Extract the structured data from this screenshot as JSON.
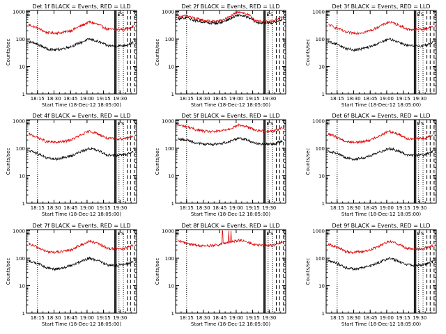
{
  "colors": {
    "events": "#000000",
    "lld": "#dd0000",
    "axis": "#000000"
  },
  "chart_data": [
    {
      "type": "line",
      "title": "Det 1f BLACK = Events, RED = LLD",
      "xlabel": "Start Time (18-Dec-12 18:05:00)",
      "ylabel": "Counts/sec",
      "x_ticks": [
        "18:15",
        "18:30",
        "18:45",
        "19:00",
        "19:15",
        "19:30"
      ],
      "y_ticks": [
        "1",
        "10",
        "100",
        "1000"
      ],
      "y_scale": "log",
      "ylim": [
        1,
        1100
      ],
      "xlim_minutes": [
        0,
        100
      ],
      "event_markers": [
        "E",
        "S"
      ],
      "series": [
        {
          "role": "lld",
          "level": [
            330,
            250,
            175,
            165,
            175,
            210,
            300,
            420,
            330,
            230,
            220,
            230,
            290
          ]
        },
        {
          "role": "events",
          "level": [
            80,
            65,
            45,
            40,
            45,
            55,
            75,
            100,
            80,
            58,
            55,
            58,
            75
          ]
        }
      ]
    },
    {
      "type": "line",
      "title": "Det 2f BLACK = Events, RED = LLD",
      "xlabel": "Start Time (18-Dec-12 18:05:00)",
      "ylabel": "Counts/sec",
      "x_ticks": [
        "18:15",
        "18:30",
        "18:45",
        "19:00",
        "19:15",
        "19:30"
      ],
      "y_ticks": [
        "1",
        "10",
        "100",
        "1000"
      ],
      "y_scale": "log",
      "ylim": [
        1,
        1100
      ],
      "xlim_minutes": [
        0,
        100
      ],
      "event_markers": [
        "E",
        "S"
      ],
      "series": [
        {
          "role": "lld",
          "level": [
            620,
            700,
            560,
            480,
            430,
            470,
            650,
            1000,
            780,
            450,
            420,
            460,
            620
          ]
        },
        {
          "role": "events",
          "level": [
            520,
            600,
            470,
            410,
            370,
            400,
            550,
            750,
            620,
            400,
            380,
            400,
            520
          ]
        }
      ]
    },
    {
      "type": "line",
      "title": "Det 3f BLACK = Events, RED = LLD",
      "xlabel": "Start Time (18-Dec-12 18:05:00)",
      "ylabel": "Counts/sec",
      "x_ticks": [
        "18:15",
        "18:30",
        "18:45",
        "19:00",
        "19:15",
        "19:30"
      ],
      "y_ticks": [
        "1",
        "10",
        "100",
        "1000"
      ],
      "y_scale": "log",
      "ylim": [
        1,
        1100
      ],
      "xlim_minutes": [
        0,
        100
      ],
      "event_markers": [
        "E",
        "S"
      ],
      "series": [
        {
          "role": "lld",
          "level": [
            330,
            250,
            175,
            165,
            175,
            210,
            300,
            420,
            330,
            230,
            220,
            230,
            290
          ]
        },
        {
          "role": "events",
          "level": [
            80,
            65,
            45,
            40,
            45,
            55,
            75,
            100,
            80,
            58,
            55,
            58,
            75
          ]
        }
      ]
    },
    {
      "type": "line",
      "title": "Det 4f BLACK = Events, RED = LLD",
      "xlabel": "Start Time (18-Dec-12 18:05:00)",
      "ylabel": "Counts/sec",
      "x_ticks": [
        "18:15",
        "18:30",
        "18:45",
        "19:00",
        "19:15",
        "19:30"
      ],
      "y_ticks": [
        "1",
        "10",
        "100",
        "1000"
      ],
      "y_scale": "log",
      "ylim": [
        1,
        1100
      ],
      "xlim_minutes": [
        0,
        100
      ],
      "event_markers": [
        "E",
        "S"
      ],
      "series": [
        {
          "role": "lld",
          "level": [
            330,
            250,
            175,
            165,
            175,
            210,
            300,
            420,
            330,
            230,
            220,
            230,
            290
          ]
        },
        {
          "role": "events",
          "level": [
            80,
            65,
            45,
            40,
            45,
            55,
            75,
            100,
            80,
            58,
            55,
            58,
            75
          ]
        }
      ]
    },
    {
      "type": "line",
      "title": "Det 5f BLACK = Events, RED = LLD",
      "xlabel": "Start Time (18-Dec-12 18:05:00)",
      "ylabel": "Counts/sec",
      "x_ticks": [
        "18:15",
        "18:30",
        "18:45",
        "19:00",
        "19:15",
        "19:30"
      ],
      "y_ticks": [
        "1",
        "10",
        "100",
        "1000"
      ],
      "y_scale": "log",
      "ylim": [
        1,
        1100
      ],
      "xlim_minutes": [
        0,
        100
      ],
      "event_markers": [
        "E",
        "S"
      ],
      "series": [
        {
          "role": "lld",
          "level": [
            700,
            620,
            480,
            420,
            400,
            430,
            520,
            700,
            600,
            450,
            420,
            430,
            560
          ]
        },
        {
          "role": "events",
          "level": [
            220,
            200,
            160,
            140,
            140,
            150,
            180,
            240,
            200,
            150,
            140,
            145,
            180
          ]
        }
      ]
    },
    {
      "type": "line",
      "title": "Det 6f BLACK = Events, RED = LLD",
      "xlabel": "Start Time (18-Dec-12 18:05:00)",
      "ylabel": "Counts/sec",
      "x_ticks": [
        "18:15",
        "18:30",
        "18:45",
        "19:00",
        "19:15",
        "19:30"
      ],
      "y_ticks": [
        "1",
        "10",
        "100",
        "1000"
      ],
      "y_scale": "log",
      "ylim": [
        1,
        1100
      ],
      "xlim_minutes": [
        0,
        100
      ],
      "event_markers": [
        "E",
        "S"
      ],
      "series": [
        {
          "role": "lld",
          "level": [
            330,
            250,
            175,
            165,
            175,
            210,
            300,
            420,
            330,
            230,
            220,
            230,
            290
          ]
        },
        {
          "role": "events",
          "level": [
            80,
            65,
            45,
            40,
            45,
            55,
            75,
            100,
            80,
            58,
            55,
            58,
            75
          ]
        }
      ]
    },
    {
      "type": "line",
      "title": "Det 7f BLACK = Events, RED = LLD",
      "xlabel": "Start Time (18-Dec-12 18:05:00)",
      "ylabel": "Counts/sec",
      "x_ticks": [
        "18:15",
        "18:30",
        "18:45",
        "19:00",
        "19:15",
        "19:30"
      ],
      "y_ticks": [
        "1",
        "10",
        "100",
        "1000"
      ],
      "y_scale": "log",
      "ylim": [
        1,
        1100
      ],
      "xlim_minutes": [
        0,
        100
      ],
      "event_markers": [
        "E",
        "S"
      ],
      "series": [
        {
          "role": "lld",
          "level": [
            330,
            250,
            175,
            165,
            175,
            210,
            300,
            420,
            330,
            230,
            220,
            230,
            290
          ]
        },
        {
          "role": "events",
          "level": [
            80,
            65,
            45,
            40,
            45,
            55,
            75,
            100,
            80,
            58,
            55,
            58,
            75
          ]
        }
      ]
    },
    {
      "type": "line",
      "title": "Det 8f BLACK = Events, RED = LLD",
      "xlabel": "Start Time (18-Dec-12 18:05:00)",
      "ylabel": "Counts/sec",
      "x_ticks": [
        "18:15",
        "18:30",
        "18:45",
        "19:00",
        "19:15",
        "19:30"
      ],
      "y_ticks": [
        "1",
        "10",
        "100",
        "1000"
      ],
      "y_scale": "log",
      "ylim": [
        1,
        1100
      ],
      "xlim_minutes": [
        0,
        100
      ],
      "event_markers": [
        "E",
        "S"
      ],
      "spikes_minutes": [
        [
          42,
          42.8
        ],
        [
          48,
          48.6
        ],
        [
          50,
          50.6
        ]
      ],
      "spike_level": 1000,
      "series": [
        {
          "role": "lld",
          "level": [
            420,
            360,
            300,
            280,
            290,
            320,
            380,
            460,
            380,
            300,
            290,
            300,
            380
          ]
        }
      ]
    },
    {
      "type": "line",
      "title": "Det 9f BLACK = Events, RED = LLD",
      "xlabel": "Start Time (18-Dec-12 18:05:00)",
      "ylabel": "Counts/sec",
      "x_ticks": [
        "18:15",
        "18:30",
        "18:45",
        "19:00",
        "19:15",
        "19:30"
      ],
      "y_ticks": [
        "1",
        "10",
        "100",
        "1000"
      ],
      "y_scale": "log",
      "ylim": [
        1,
        1100
      ],
      "xlim_minutes": [
        0,
        100
      ],
      "event_markers": [
        "E",
        "S"
      ],
      "series": [
        {
          "role": "lld",
          "level": [
            330,
            250,
            175,
            165,
            175,
            210,
            300,
            420,
            330,
            230,
            220,
            230,
            290
          ]
        },
        {
          "role": "events",
          "level": [
            80,
            65,
            45,
            40,
            45,
            55,
            75,
            100,
            80,
            58,
            55,
            58,
            75
          ]
        }
      ]
    }
  ]
}
